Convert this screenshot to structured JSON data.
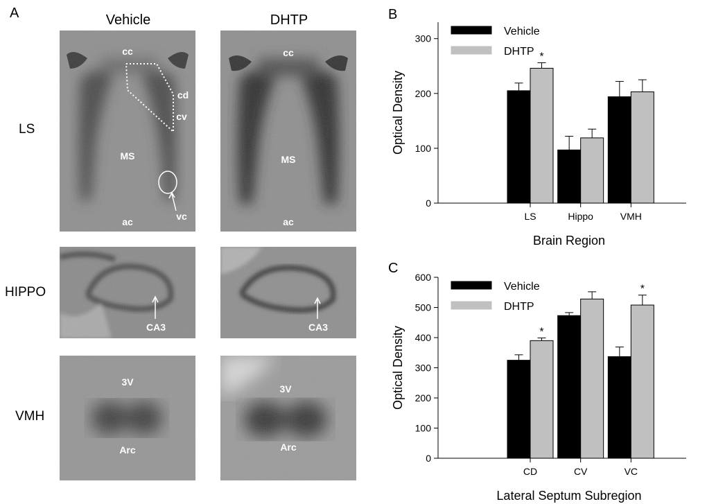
{
  "panel_a": {
    "letter": "A",
    "columns": [
      "Vehicle",
      "DHTP"
    ],
    "rows": [
      "LS",
      "HIPPO",
      "VMH"
    ],
    "ls_vehicle_labels": [
      "cc",
      "cd",
      "cv",
      "MS",
      "ac",
      "vc"
    ],
    "ls_dhtp_labels": [
      "cc",
      "MS",
      "ac"
    ],
    "hippo_label": "CA3",
    "vmh_labels": [
      "3V",
      "Arc"
    ]
  },
  "chart_data": [
    {
      "panel": "B",
      "type": "bar",
      "categories": [
        "LS",
        "Hippo",
        "VMH"
      ],
      "series": [
        {
          "name": "Vehicle",
          "values": [
            205,
            97,
            194
          ],
          "errors": [
            14,
            25,
            28
          ],
          "color": "#000000"
        },
        {
          "name": "DHTP",
          "values": [
            246,
            119,
            203
          ],
          "errors": [
            10,
            16,
            22
          ],
          "color": "#c0c0c0"
        }
      ],
      "significance": [
        "*",
        "",
        ""
      ],
      "xlabel": "Brain Region",
      "ylabel": "Optical Density",
      "ylim": [
        0,
        330
      ],
      "yticks": [
        0,
        100,
        200,
        300
      ],
      "legend": "top-left",
      "grid": false
    },
    {
      "panel": "C",
      "type": "bar",
      "categories": [
        "CD",
        "CV",
        "VC"
      ],
      "series": [
        {
          "name": "Vehicle",
          "values": [
            325,
            473,
            337
          ],
          "errors": [
            18,
            10,
            32
          ],
          "color": "#000000"
        },
        {
          "name": "DHTP",
          "values": [
            390,
            528,
            508
          ],
          "errors": [
            9,
            24,
            33
          ],
          "color": "#c0c0c0"
        }
      ],
      "significance": [
        "*",
        "",
        "*"
      ],
      "xlabel": "Lateral Septum Subregion",
      "ylabel": "Optical Density",
      "ylim": [
        0,
        600
      ],
      "yticks": [
        0,
        100,
        200,
        300,
        400,
        500,
        600
      ],
      "legend": "top-left",
      "grid": false
    }
  ]
}
